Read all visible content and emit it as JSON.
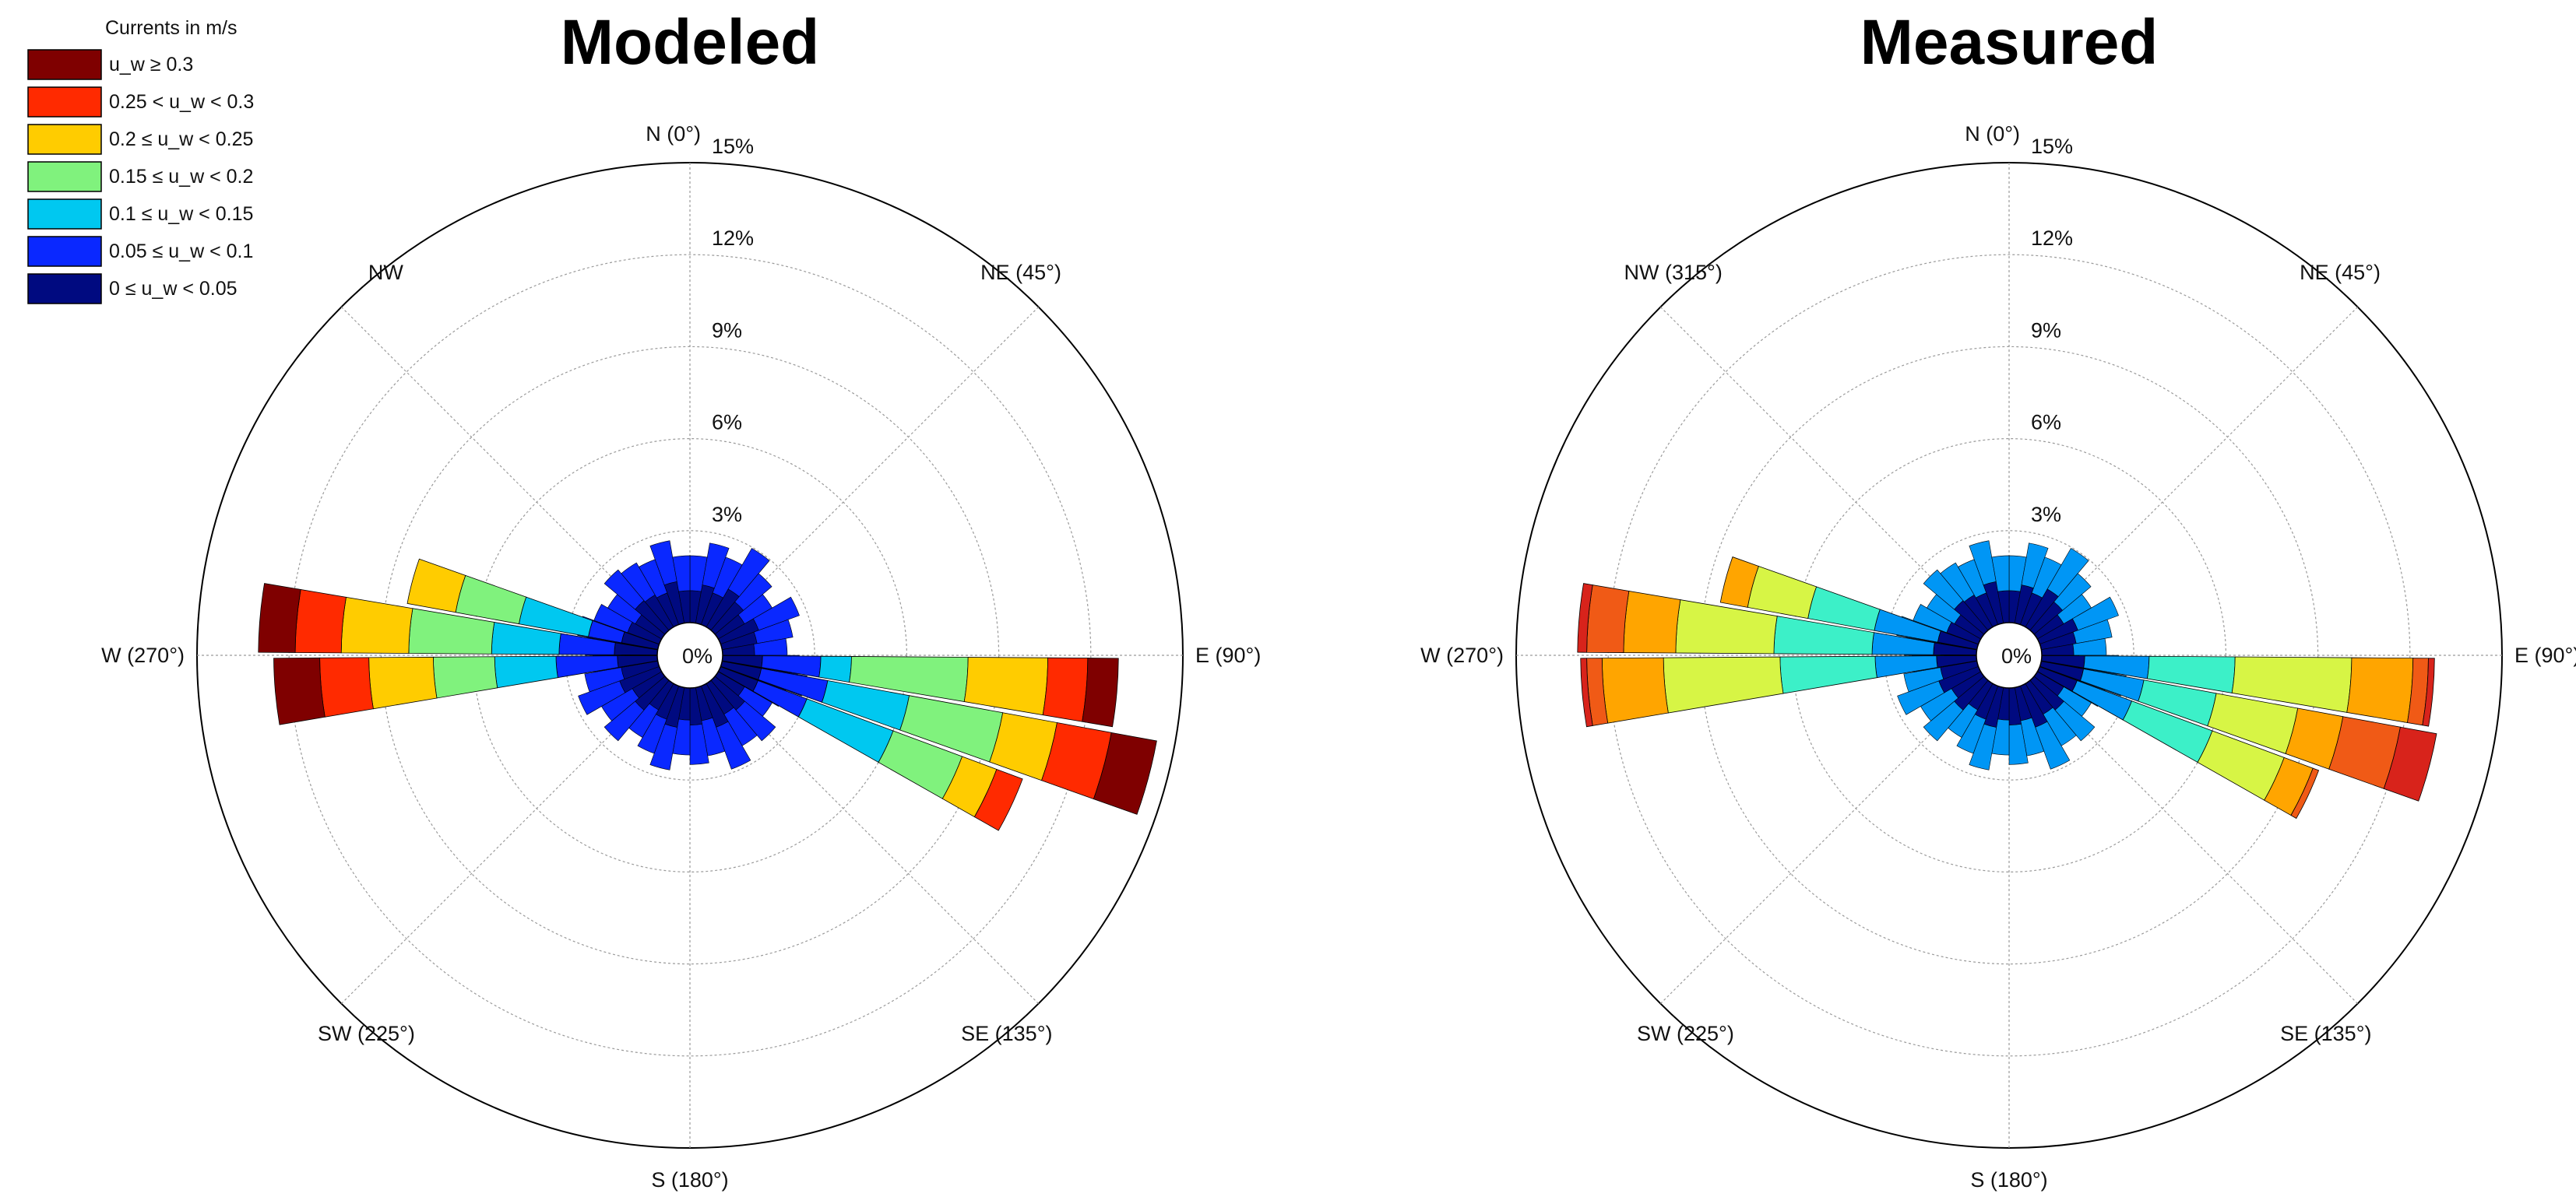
{
  "legend": {
    "title": "Currents in m/s",
    "items": [
      {
        "label": "u_w ≥ 0.3",
        "mc": "#7f0000",
        "ms": "#d8231b"
      },
      {
        "label": "0.25 < u_w < 0.3",
        "mc": "#ff2a00",
        "ms": "#f05a16"
      },
      {
        "label": "0.2 ≤ u_w < 0.25",
        "mc": "#ffcc00",
        "ms": "#ffa500"
      },
      {
        "label": "0.15 ≤ u_w < 0.2",
        "mc": "#80f27d",
        "ms": "#d7f545"
      },
      {
        "label": "0.1 ≤ u_w < 0.15",
        "mc": "#00c8f0",
        "ms": "#3cf0c8"
      },
      {
        "label": "0.05 ≤ u_w < 0.1",
        "mc": "#0a28ff",
        "ms": "#0096f5"
      },
      {
        "label": "0 ≤ u_w < 0.05",
        "mc": "#000a80",
        "ms": "#000a80"
      }
    ]
  },
  "chart_data": [
    {
      "type": "rose",
      "title": "Modeled",
      "ring_labels": [
        "0%",
        "3%",
        "6%",
        "9%",
        "12%",
        "15%"
      ],
      "rmax": 15,
      "direction_labels": [
        {
          "deg": 0,
          "text": "N (0°)"
        },
        {
          "deg": 45,
          "text": "NE (45°)"
        },
        {
          "deg": 90,
          "text": "E (90°)"
        },
        {
          "deg": 135,
          "text": "SE (135°)"
        },
        {
          "deg": 180,
          "text": "S (180°)"
        },
        {
          "deg": 225,
          "text": "SW (225°)"
        },
        {
          "deg": 270,
          "text": "W (270°)"
        },
        {
          "deg": 315,
          "text": "NW"
        }
      ],
      "sectors": [
        {
          "dir": 95,
          "cum": [
            1.3,
            3.2,
            4.2,
            8.0,
            10.6,
            11.9,
            12.9
          ]
        },
        {
          "dir": 105,
          "cum": [
            1.3,
            3.5,
            6.2,
            9.3,
            11.1,
            12.9,
            14.4
          ]
        },
        {
          "dir": 115,
          "cum": [
            1.3,
            3.0,
            6.0,
            8.4,
            9.6,
            10.5,
            10.5
          ]
        },
        {
          "dir": 265,
          "cum": [
            1.3,
            3.3,
            5.3,
            7.3,
            9.4,
            11.0,
            12.5
          ]
        },
        {
          "dir": 275,
          "cum": [
            1.4,
            3.2,
            5.4,
            8.1,
            10.3,
            11.8,
            13.0
          ]
        },
        {
          "dir": 285,
          "cum": [
            1.2,
            2.3,
            4.6,
            6.7,
            8.3,
            8.3,
            8.3
          ]
        }
      ]
    },
    {
      "type": "rose",
      "title": "Measured",
      "ring_labels": [
        "0%",
        "3%",
        "6%",
        "9%",
        "12%",
        "15%"
      ],
      "rmax": 15,
      "direction_labels": [
        {
          "deg": 0,
          "text": "N (0°)"
        },
        {
          "deg": 45,
          "text": "NE (45°)"
        },
        {
          "deg": 90,
          "text": "E (90°)"
        },
        {
          "deg": 135,
          "text": "SE (135°)"
        },
        {
          "deg": 180,
          "text": "S (180°)"
        },
        {
          "deg": 225,
          "text": "SW (225°)"
        },
        {
          "deg": 270,
          "text": "W (270°)"
        },
        {
          "deg": 315,
          "text": "NW (315°)"
        }
      ],
      "sectors": [
        {
          "dir": 95,
          "cum": [
            1.4,
            3.5,
            6.3,
            10.1,
            12.1,
            12.6,
            12.8
          ]
        },
        {
          "dir": 105,
          "cum": [
            1.4,
            3.4,
            5.8,
            8.5,
            10.0,
            11.9,
            13.1
          ]
        },
        {
          "dir": 115,
          "cum": [
            1.3,
            3.2,
            6.0,
            8.5,
            9.5,
            9.7,
            9.7
          ]
        },
        {
          "dir": 265,
          "cum": [
            1.3,
            3.3,
            6.4,
            10.2,
            12.2,
            12.7,
            12.9
          ]
        },
        {
          "dir": 275,
          "cum": [
            1.4,
            3.4,
            6.6,
            9.8,
            11.5,
            12.7,
            13.0
          ]
        },
        {
          "dir": 285,
          "cum": [
            1.3,
            3.4,
            5.6,
            7.6,
            8.5,
            8.5,
            8.5
          ]
        }
      ]
    }
  ]
}
